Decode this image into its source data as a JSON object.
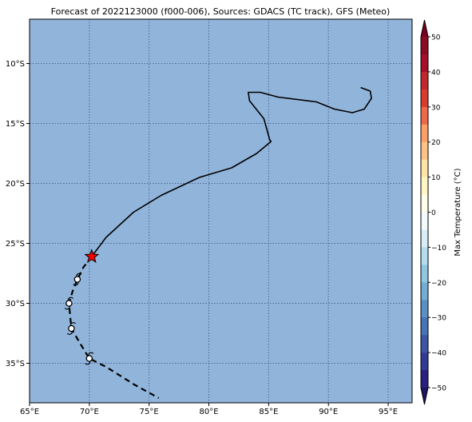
{
  "title": "Forecast of 2022123000 (f000-006), Sources: GDACS (TC track), GFS (Meteo)",
  "map": {
    "lon_range": [
      65,
      97
    ],
    "lat_range": [
      -38.3,
      -6.3
    ],
    "ocean_color": "#91b4da",
    "grid_color": "#4d6a9a",
    "grid_style": "dotted",
    "lon_ticks": [
      {
        "value": 65,
        "label": "65°E"
      },
      {
        "value": 70,
        "label": "70°E"
      },
      {
        "value": 75,
        "label": "75°E"
      },
      {
        "value": 80,
        "label": "80°E"
      },
      {
        "value": 85,
        "label": "85°E"
      },
      {
        "value": 90,
        "label": "90°E"
      },
      {
        "value": 95,
        "label": "95°E"
      }
    ],
    "lat_ticks": [
      {
        "value": -10,
        "label": "10°S"
      },
      {
        "value": -15,
        "label": "15°S"
      },
      {
        "value": -20,
        "label": "20°S"
      },
      {
        "value": -25,
        "label": "25°S"
      },
      {
        "value": -30,
        "label": "30°S"
      },
      {
        "value": -35,
        "label": "35°S"
      }
    ]
  },
  "track": {
    "past_color": "#000000",
    "past_track": [
      [
        92.7,
        -12.0
      ],
      [
        93.5,
        -12.3
      ],
      [
        93.6,
        -12.9
      ],
      [
        93.0,
        -13.8
      ],
      [
        92.0,
        -14.1
      ],
      [
        90.5,
        -13.8
      ],
      [
        89.0,
        -13.2
      ],
      [
        85.8,
        -12.8
      ],
      [
        84.3,
        -12.4
      ],
      [
        83.3,
        -12.4
      ],
      [
        83.4,
        -13.1
      ],
      [
        84.6,
        -14.6
      ],
      [
        85.1,
        -16.4
      ],
      [
        85.2,
        -16.5
      ],
      [
        84.0,
        -17.5
      ],
      [
        81.9,
        -18.7
      ],
      [
        79.2,
        -19.5
      ],
      [
        76.0,
        -21.0
      ],
      [
        73.7,
        -22.4
      ],
      [
        71.4,
        -24.5
      ],
      [
        70.2,
        -26.1
      ]
    ],
    "current_position": {
      "lon": 70.2,
      "lat": -26.1,
      "marker": "star-icon",
      "color": "#ff0000"
    },
    "forecast_track": [
      [
        70.2,
        -26.1
      ],
      [
        69.5,
        -27.0
      ],
      [
        69.0,
        -28.0
      ],
      [
        68.6,
        -29.0
      ],
      [
        68.3,
        -30.0
      ],
      [
        68.4,
        -31.1
      ],
      [
        68.5,
        -32.1
      ],
      [
        69.2,
        -33.3
      ],
      [
        70.0,
        -34.6
      ],
      [
        71.4,
        -35.3
      ],
      [
        73.8,
        -36.8
      ],
      [
        75.8,
        -37.9
      ]
    ],
    "forecast_markers": [
      {
        "lon": 69.0,
        "lat": -28.0,
        "symbol": "cyclone-icon"
      },
      {
        "lon": 68.3,
        "lat": -30.0,
        "symbol": "cyclone-icon"
      },
      {
        "lon": 68.5,
        "lat": -32.1,
        "symbol": "cyclone-icon"
      },
      {
        "lon": 70.0,
        "lat": -34.6,
        "symbol": "cyclone-icon"
      }
    ]
  },
  "colorbar": {
    "label": "Max Temperature (°C)",
    "min": -50,
    "max": 50,
    "ticks": [
      {
        "value": 50,
        "label": "50"
      },
      {
        "value": 40,
        "label": "40"
      },
      {
        "value": 30,
        "label": "30"
      },
      {
        "value": 20,
        "label": "20"
      },
      {
        "value": 10,
        "label": "10"
      },
      {
        "value": 0,
        "label": "0"
      },
      {
        "value": -10,
        "label": "−10"
      },
      {
        "value": -20,
        "label": "−20"
      },
      {
        "value": -30,
        "label": "−30"
      },
      {
        "value": -40,
        "label": "−40"
      },
      {
        "value": -50,
        "label": "−50"
      }
    ],
    "bands": [
      {
        "from": 45,
        "to": 50,
        "color": "#8b0a26"
      },
      {
        "from": 40,
        "to": 45,
        "color": "#a50f2a"
      },
      {
        "from": 35,
        "to": 40,
        "color": "#c1272d"
      },
      {
        "from": 30,
        "to": 35,
        "color": "#d73c2c"
      },
      {
        "from": 25,
        "to": 30,
        "color": "#ec6a4a"
      },
      {
        "from": 20,
        "to": 25,
        "color": "#f99f67"
      },
      {
        "from": 15,
        "to": 20,
        "color": "#fdc287"
      },
      {
        "from": 10,
        "to": 15,
        "color": "#fee4a4"
      },
      {
        "from": 5,
        "to": 10,
        "color": "#fff6c6"
      },
      {
        "from": 0,
        "to": 5,
        "color": "#fffde8"
      },
      {
        "from": -5,
        "to": 0,
        "color": "#f2fafd"
      },
      {
        "from": -10,
        "to": -5,
        "color": "#d8eef6"
      },
      {
        "from": -15,
        "to": -10,
        "color": "#b4dcec"
      },
      {
        "from": -20,
        "to": -15,
        "color": "#91c6e0"
      },
      {
        "from": -25,
        "to": -20,
        "color": "#74add1"
      },
      {
        "from": -30,
        "to": -25,
        "color": "#5a90c4"
      },
      {
        "from": -35,
        "to": -30,
        "color": "#4873b5"
      },
      {
        "from": -40,
        "to": -35,
        "color": "#3c55a4"
      },
      {
        "from": -45,
        "to": -40,
        "color": "#333a95"
      },
      {
        "from": -50,
        "to": -45,
        "color": "#2a2080"
      }
    ],
    "extend_top_color": "#7a0020",
    "extend_bottom_color": "#1e1460"
  }
}
